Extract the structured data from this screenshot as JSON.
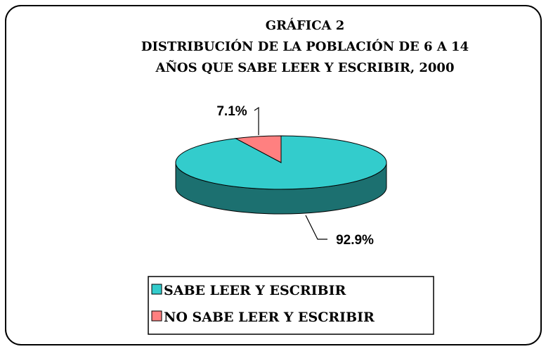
{
  "chart_data": {
    "type": "pie3d",
    "title": [
      "GRÁFICA 2",
      "DISTRIBUCIÓN DE LA POBLACIÓN DE 6 A 14",
      "AÑOS QUE SABE LEER Y ESCRIBIR, 2000"
    ],
    "categories": [
      "SABE LEER Y ESCRIBIR",
      "NO SABE LEER Y ESCRIBIR"
    ],
    "values": [
      92.9,
      7.1
    ],
    "value_labels": [
      "92.9%",
      "7.1%"
    ],
    "colors": [
      "#33cccc",
      "#ff8080"
    ],
    "legend": "bottom"
  }
}
